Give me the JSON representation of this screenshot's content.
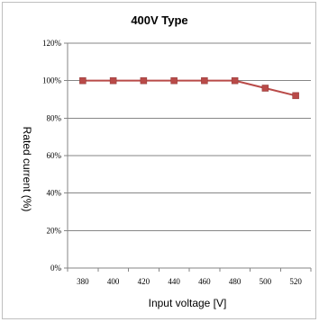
{
  "chart_data": {
    "type": "line",
    "title": "400V Type",
    "xlabel": "Input voltage [V]",
    "ylabel": "Rated current (%)",
    "categories": [
      "380",
      "400",
      "420",
      "440",
      "460",
      "480",
      "500",
      "520"
    ],
    "series": [
      {
        "values": [
          100,
          100,
          100,
          100,
          100,
          100,
          96,
          92
        ]
      }
    ],
    "yticks": [
      "0%",
      "20%",
      "40%",
      "60%",
      "80%",
      "100%",
      "120%"
    ],
    "ylim": [
      0,
      120
    ],
    "grid": true,
    "legend": "none",
    "marker": "square",
    "line_color": "#b94a48"
  }
}
